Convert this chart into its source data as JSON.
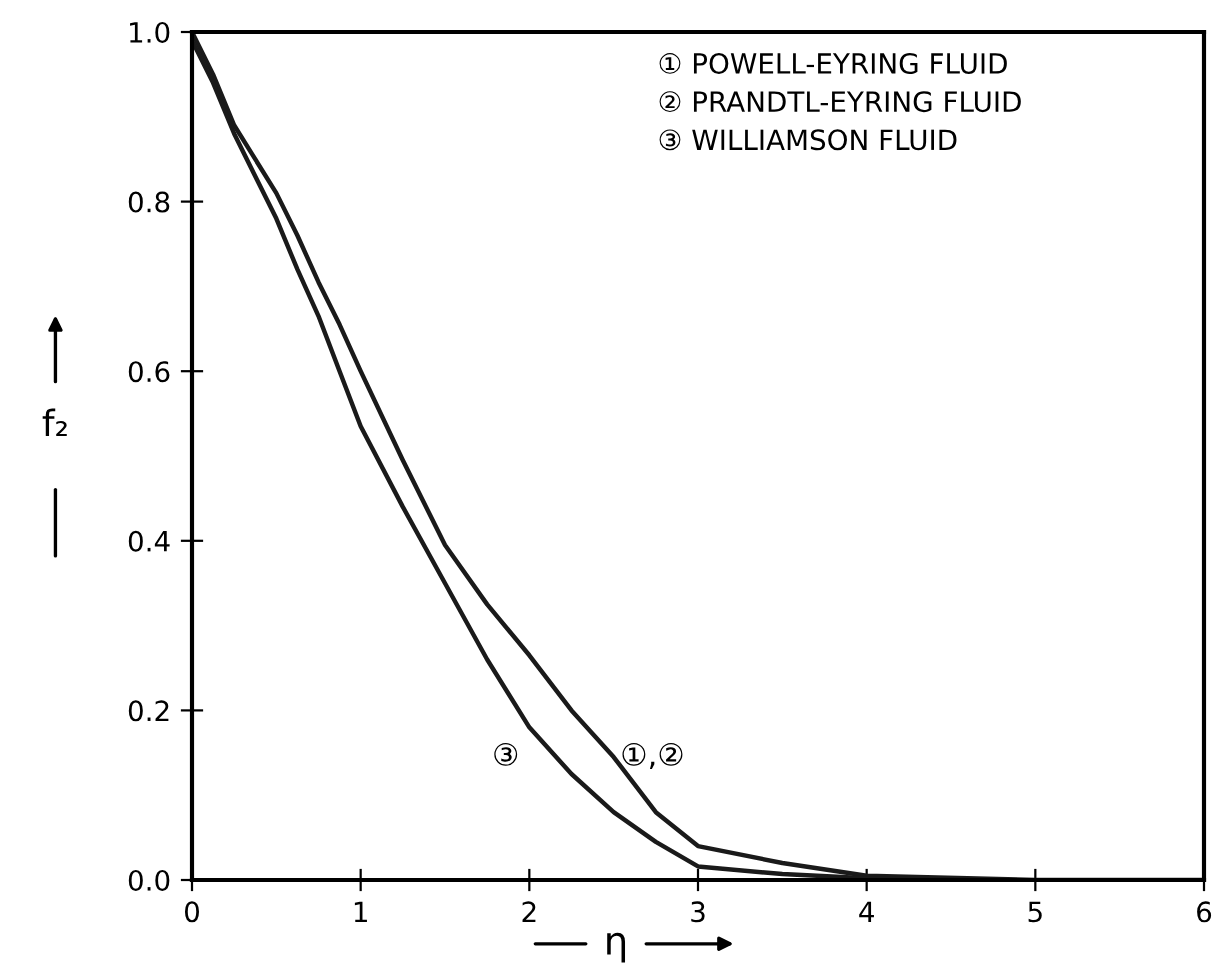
{
  "chart_data": {
    "type": "line",
    "xlabel": "η",
    "ylabel": "f₂",
    "x": [
      0,
      0.125,
      0.25,
      0.375,
      0.5,
      0.625,
      0.75,
      0.875,
      1,
      1.25,
      1.5,
      1.75,
      2,
      2.25,
      2.5,
      2.75,
      3,
      3.5,
      4,
      5,
      6
    ],
    "series": [
      {
        "color": "#1a1a1a",
        "values": [
          1.0,
          0.95,
          0.89,
          0.85,
          0.81,
          0.76,
          0.705,
          0.655,
          0.6,
          0.495,
          0.395,
          0.325,
          0.265,
          0.2,
          0.145,
          0.08,
          0.04,
          0.02,
          0.005,
          0.0,
          0.0
        ]
      },
      {
        "color": "#1a1a1a",
        "x": [
          0,
          0.125,
          0.25,
          0.375,
          0.5,
          0.625,
          0.75,
          0.875,
          1,
          1.25,
          1.5,
          1.75,
          2,
          2.25,
          2.5,
          2.75,
          3,
          3.5,
          4,
          4.5
        ],
        "values": [
          0.99,
          0.94,
          0.88,
          0.83,
          0.78,
          0.72,
          0.665,
          0.6,
          0.535,
          0.44,
          0.35,
          0.26,
          0.18,
          0.125,
          0.08,
          0.045,
          0.016,
          0.007,
          0.002,
          0.0
        ]
      }
    ],
    "xlim": [
      0,
      6
    ],
    "ylim": [
      0.0,
      1.0
    ],
    "xticks": [
      0,
      1,
      2,
      3,
      4,
      5,
      6
    ],
    "yticks": [
      {
        "value": 0,
        "label": "0.0"
      },
      0.2,
      0.4,
      0.6,
      0.8,
      {
        "value": 1,
        "label": "1.0"
      }
    ],
    "grid": false,
    "marker": "none",
    "line_style": "solid",
    "annotations": [
      "① POWELL-EYRING FLUID",
      "② PRANDTL-EYRING FLUID",
      "③ WILLIAMSON FLUID",
      "①,②",
      "③"
    ]
  }
}
